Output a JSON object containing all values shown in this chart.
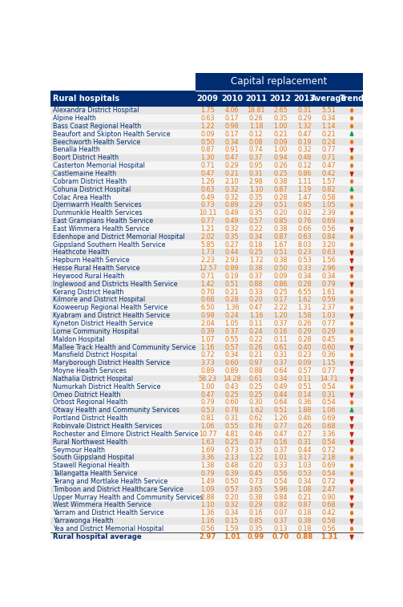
{
  "title": "Capital replacement",
  "col_header": [
    "2009",
    "2010",
    "2011",
    "2012",
    "2013",
    "Average",
    "Trend"
  ],
  "row_header_label": "Rural hospitals",
  "rows": [
    {
      "name": "Alexandra District Hospital",
      "vals": [
        1.75,
        4.06,
        18.81,
        2.65,
        0.31,
        5.51
      ],
      "trend": "circle_orange"
    },
    {
      "name": "Alpine Health",
      "vals": [
        0.63,
        0.17,
        0.26,
        0.35,
        0.29,
        0.34
      ],
      "trend": "circle_orange"
    },
    {
      "name": "Bass Coast Regional Health",
      "vals": [
        1.22,
        0.98,
        1.18,
        1.0,
        1.32,
        1.14
      ],
      "trend": "circle_orange"
    },
    {
      "name": "Beaufort and Skipton Health Service",
      "vals": [
        0.09,
        0.17,
        0.12,
        0.21,
        0.47,
        0.21
      ],
      "trend": "triangle_up_green"
    },
    {
      "name": "Beechworth Health Service",
      "vals": [
        0.5,
        0.34,
        0.08,
        0.09,
        0.19,
        0.24
      ],
      "trend": "circle_orange"
    },
    {
      "name": "Benalla Health",
      "vals": [
        0.87,
        0.91,
        0.74,
        1.0,
        0.32,
        0.77
      ],
      "trend": "triangle_down_red"
    },
    {
      "name": "Boort District Health",
      "vals": [
        1.3,
        0.47,
        0.37,
        0.94,
        0.48,
        0.71
      ],
      "trend": "circle_orange"
    },
    {
      "name": "Casterton Memorial Hospital",
      "vals": [
        0.71,
        0.29,
        0.95,
        0.26,
        0.12,
        0.47
      ],
      "trend": "circle_orange"
    },
    {
      "name": "Castlemaine Health",
      "vals": [
        0.47,
        0.21,
        0.31,
        0.25,
        0.86,
        0.42
      ],
      "trend": "triangle_down_red"
    },
    {
      "name": "Cobram District Health",
      "vals": [
        1.26,
        2.1,
        2.98,
        0.38,
        1.11,
        1.57
      ],
      "trend": "circle_orange"
    },
    {
      "name": "Cohuna District Hospital",
      "vals": [
        0.63,
        0.32,
        1.1,
        0.87,
        1.19,
        0.82
      ],
      "trend": "triangle_up_green"
    },
    {
      "name": "Colac Area Health",
      "vals": [
        0.49,
        0.32,
        0.35,
        0.28,
        1.47,
        0.58
      ],
      "trend": "circle_orange"
    },
    {
      "name": "Djerriwarrh Health Services",
      "vals": [
        0.73,
        0.89,
        2.29,
        0.51,
        0.85,
        1.05
      ],
      "trend": "circle_orange"
    },
    {
      "name": "Dunmunkle Health Services",
      "vals": [
        10.11,
        0.49,
        0.35,
        0.2,
        0.82,
        2.39
      ],
      "trend": "circle_orange"
    },
    {
      "name": "East Grampians Health Service",
      "vals": [
        0.77,
        0.49,
        0.57,
        0.85,
        0.76,
        0.69
      ],
      "trend": "circle_orange"
    },
    {
      "name": "East Wimmera Health Service",
      "vals": [
        1.21,
        0.32,
        0.22,
        0.38,
        0.66,
        0.56
      ],
      "trend": "triangle_down_red"
    },
    {
      "name": "Edenhope and District Memorial Hospital",
      "vals": [
        2.02,
        0.35,
        0.34,
        0.87,
        0.63,
        0.84
      ],
      "trend": "circle_orange"
    },
    {
      "name": "Gippsland Southern Health Service",
      "vals": [
        5.85,
        0.27,
        0.18,
        1.67,
        8.03,
        3.2
      ],
      "trend": "circle_orange"
    },
    {
      "name": "Heathcote Health",
      "vals": [
        1.73,
        0.44,
        0.25,
        0.51,
        0.23,
        0.63
      ],
      "trend": "triangle_down_red"
    },
    {
      "name": "Hepburn Health Service",
      "vals": [
        2.23,
        2.93,
        1.72,
        0.38,
        0.53,
        1.56
      ],
      "trend": "triangle_down_red"
    },
    {
      "name": "Hesse Rural Health Service",
      "vals": [
        12.57,
        0.89,
        0.38,
        0.5,
        0.33,
        2.96
      ],
      "trend": "triangle_down_red"
    },
    {
      "name": "Heywood Rural Health",
      "vals": [
        0.71,
        0.19,
        0.37,
        0.09,
        0.34,
        0.34
      ],
      "trend": "circle_orange"
    },
    {
      "name": "Inglewood and Districts Health Service",
      "vals": [
        1.42,
        0.51,
        0.88,
        0.86,
        0.28,
        0.79
      ],
      "trend": "triangle_down_red"
    },
    {
      "name": "Kerang District Health",
      "vals": [
        0.7,
        0.21,
        0.33,
        0.25,
        6.55,
        1.61
      ],
      "trend": "circle_orange"
    },
    {
      "name": "Kilmore and District Hospital",
      "vals": [
        0.68,
        0.28,
        0.2,
        0.17,
        1.62,
        0.59
      ],
      "trend": "circle_orange"
    },
    {
      "name": "Kooweerup Regional Health Service",
      "vals": [
        6.5,
        1.36,
        0.47,
        2.22,
        1.31,
        2.37
      ],
      "trend": "circle_orange"
    },
    {
      "name": "Kyabram and District Health Service",
      "vals": [
        0.98,
        0.24,
        1.16,
        1.2,
        1.58,
        1.03
      ],
      "trend": "triangle_down_red"
    },
    {
      "name": "Kyneton District Health Service",
      "vals": [
        2.04,
        1.05,
        0.11,
        0.37,
        0.26,
        0.77
      ],
      "trend": "circle_orange"
    },
    {
      "name": "Lorne Community Hospital",
      "vals": [
        0.39,
        0.37,
        0.24,
        0.16,
        0.29,
        0.29
      ],
      "trend": "circle_orange"
    },
    {
      "name": "Maldon Hospital",
      "vals": [
        1.07,
        0.55,
        0.22,
        0.11,
        0.28,
        0.45
      ],
      "trend": "circle_orange"
    },
    {
      "name": "Mallee Track Health and Community Service",
      "vals": [
        1.16,
        0.57,
        0.26,
        0.61,
        0.4,
        0.6
      ],
      "trend": "triangle_down_red"
    },
    {
      "name": "Mansfield District Hospital",
      "vals": [
        0.72,
        0.34,
        0.21,
        0.31,
        0.23,
        0.36
      ],
      "trend": "circle_orange"
    },
    {
      "name": "Maryborough District Health Service",
      "vals": [
        3.73,
        0.6,
        0.97,
        0.37,
        0.09,
        1.15
      ],
      "trend": "triangle_down_red"
    },
    {
      "name": "Moyne Health Services",
      "vals": [
        0.89,
        0.89,
        0.88,
        0.64,
        0.57,
        0.77
      ],
      "trend": "triangle_down_red"
    },
    {
      "name": "Nathalia District Hospital",
      "vals": [
        58.23,
        14.28,
        0.61,
        0.34,
        0.11,
        14.71
      ],
      "trend": "triangle_down_red"
    },
    {
      "name": "Numurkah District Health Service",
      "vals": [
        1.0,
        0.43,
        0.25,
        0.49,
        0.51,
        0.54
      ],
      "trend": "circle_orange"
    },
    {
      "name": "Omeo District Health",
      "vals": [
        0.47,
        0.25,
        0.25,
        0.44,
        0.14,
        0.31
      ],
      "trend": "triangle_down_red"
    },
    {
      "name": "Orbost Regional Health",
      "vals": [
        0.79,
        0.6,
        0.3,
        0.64,
        0.36,
        0.54
      ],
      "trend": "circle_orange"
    },
    {
      "name": "Otway Health and Community Services",
      "vals": [
        0.53,
        0.78,
        1.62,
        0.51,
        1.88,
        1.06
      ],
      "trend": "triangle_up_green"
    },
    {
      "name": "Portland District Health",
      "vals": [
        0.81,
        0.31,
        0.62,
        1.26,
        0.46,
        0.69
      ],
      "trend": "triangle_down_red"
    },
    {
      "name": "Robinvale District Health Services",
      "vals": [
        1.06,
        0.55,
        0.76,
        0.77,
        0.26,
        0.68
      ],
      "trend": "triangle_down_red"
    },
    {
      "name": "Rochester and Elmore District Health Service",
      "vals": [
        10.77,
        4.81,
        0.46,
        0.47,
        0.27,
        3.36
      ],
      "trend": "triangle_down_red"
    },
    {
      "name": "Rural Northwest Health",
      "vals": [
        1.63,
        0.25,
        0.37,
        0.16,
        0.31,
        0.54
      ],
      "trend": "triangle_down_red"
    },
    {
      "name": "Seymour Health",
      "vals": [
        1.69,
        0.73,
        0.35,
        0.37,
        0.44,
        0.72
      ],
      "trend": "circle_orange"
    },
    {
      "name": "South Gippsland Hospital",
      "vals": [
        3.36,
        2.13,
        1.22,
        1.01,
        3.17,
        2.18
      ],
      "trend": "circle_orange"
    },
    {
      "name": "Stawell Regional Health",
      "vals": [
        1.38,
        0.48,
        0.2,
        0.33,
        1.03,
        0.69
      ],
      "trend": "circle_orange"
    },
    {
      "name": "Tallangatta Health Service",
      "vals": [
        0.79,
        0.39,
        0.45,
        0.56,
        0.53,
        0.54
      ],
      "trend": "circle_orange"
    },
    {
      "name": "Terang and Mortlake Health Service",
      "vals": [
        1.49,
        0.5,
        0.73,
        0.54,
        0.34,
        0.72
      ],
      "trend": "triangle_down_red"
    },
    {
      "name": "Timboon and District Healthcare Service",
      "vals": [
        1.09,
        0.57,
        3.65,
        5.96,
        1.08,
        2.47
      ],
      "trend": "circle_orange"
    },
    {
      "name": "Upper Murray Health and Community Services",
      "vals": [
        2.88,
        0.2,
        0.38,
        0.84,
        0.21,
        0.9
      ],
      "trend": "triangle_down_red"
    },
    {
      "name": "West Wimmera Health Service",
      "vals": [
        1.1,
        0.32,
        0.29,
        0.82,
        0.87,
        0.68
      ],
      "trend": "triangle_down_red"
    },
    {
      "name": "Yarram and District Health Service",
      "vals": [
        1.36,
        0.34,
        0.16,
        0.07,
        0.18,
        0.42
      ],
      "trend": "circle_orange"
    },
    {
      "name": "Yarrawonga Health",
      "vals": [
        1.16,
        0.15,
        0.85,
        0.37,
        0.38,
        0.58
      ],
      "trend": "triangle_down_red"
    },
    {
      "name": "Yea and District Memorial Hospital",
      "vals": [
        0.56,
        1.59,
        0.35,
        0.13,
        0.18,
        0.56
      ],
      "trend": "circle_orange"
    }
  ],
  "footer": {
    "name": "Rural hospital average",
    "vals": [
      2.97,
      1.01,
      0.99,
      0.7,
      0.88,
      1.31
    ],
    "trend": "triangle_down_red"
  },
  "header_bg": "#002D72",
  "val_color_orange": "#E8750A",
  "val_color_green": "#00A550",
  "val_color_red": "#CC2200",
  "row_label_color": "#002D72",
  "alt_row_bg": "#E6E6E6",
  "normal_row_bg": "#F5F5F5"
}
